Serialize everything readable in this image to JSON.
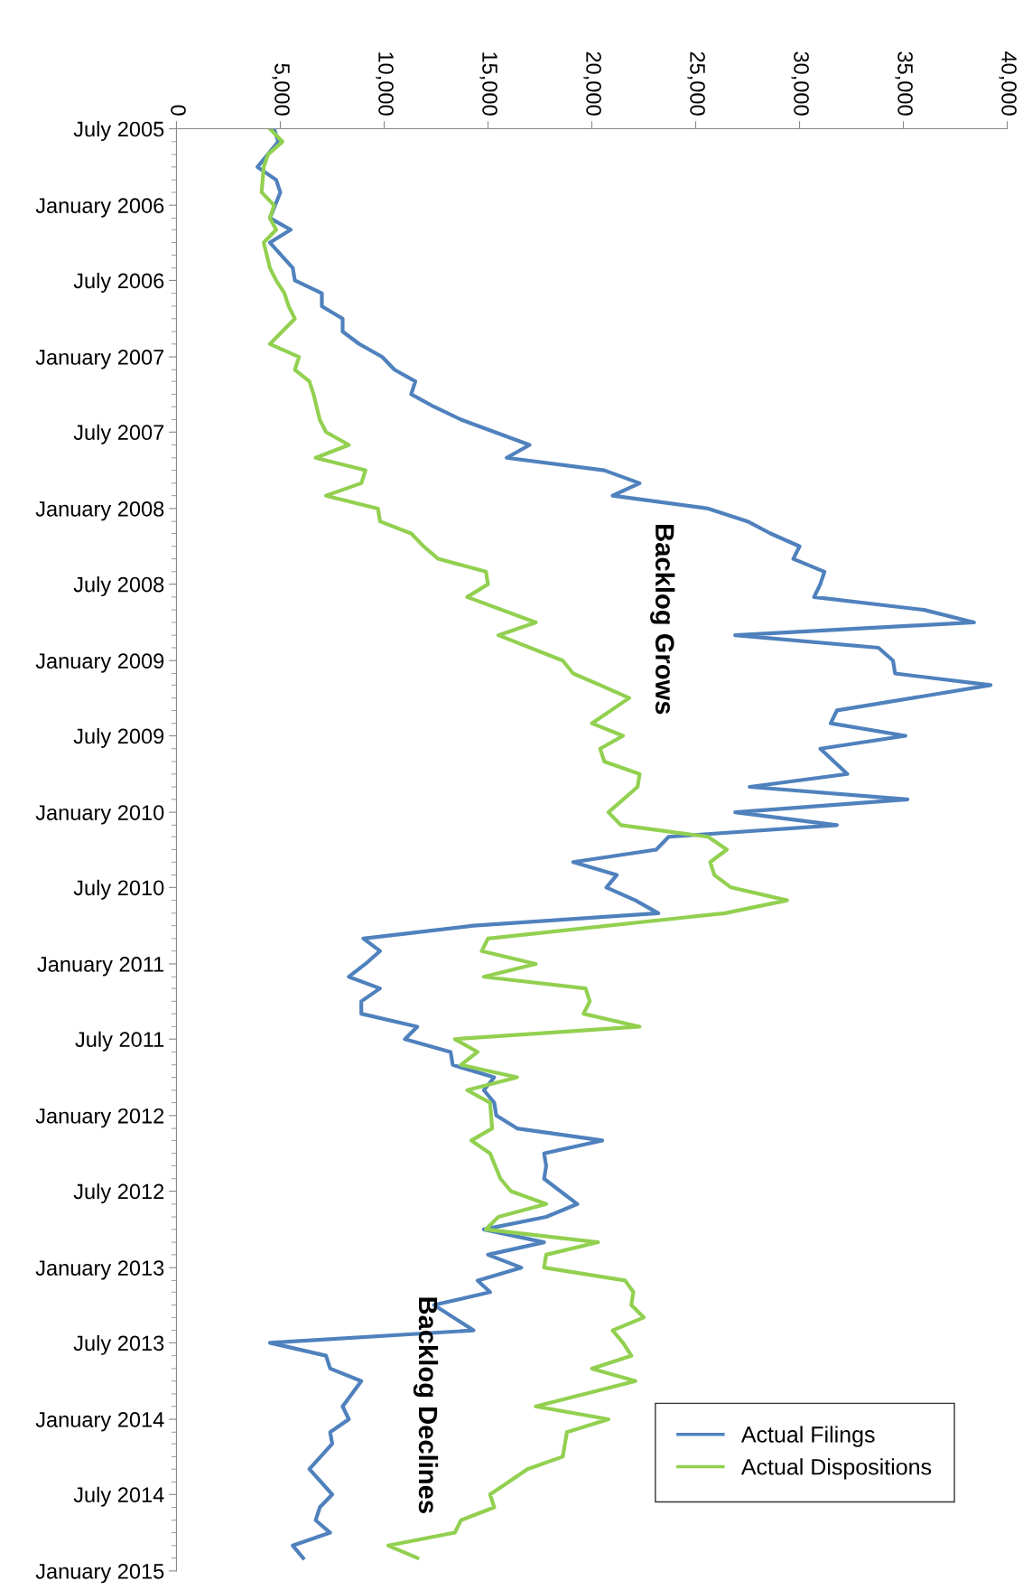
{
  "chart_data": {
    "type": "line",
    "orientation": "horizontal",
    "xlim": [
      0,
      40000
    ],
    "xticks": [
      0,
      {
        "value": 5000,
        "label": "5,000"
      },
      {
        "value": 10000,
        "label": "10,000"
      },
      {
        "value": 15000,
        "label": "15,000"
      },
      {
        "value": 20000,
        "label": "20,000"
      },
      {
        "value": 25000,
        "label": "25,000"
      },
      {
        "value": 30000,
        "label": "30,000"
      },
      {
        "value": 35000,
        "label": "35,000"
      },
      {
        "value": 40000,
        "label": "40,000"
      }
    ],
    "ylim": [
      "2015-01",
      "2005-07"
    ],
    "yticks": [
      {
        "value": "2005-07",
        "label": "July 2005"
      },
      {
        "value": "2006-01",
        "label": "January 2006"
      },
      {
        "value": "2006-07",
        "label": "July 2006"
      },
      {
        "value": "2007-01",
        "label": "January 2007"
      },
      {
        "value": "2007-07",
        "label": "July 2007"
      },
      {
        "value": "2008-01",
        "label": "January 2008"
      },
      {
        "value": "2008-07",
        "label": "July 2008"
      },
      {
        "value": "2009-01",
        "label": "January 2009"
      },
      {
        "value": "2009-07",
        "label": "July 2009"
      },
      {
        "value": "2010-01",
        "label": "January 2010"
      },
      {
        "value": "2010-07",
        "label": "July 2010"
      },
      {
        "value": "2011-01",
        "label": "January 2011"
      },
      {
        "value": "2011-07",
        "label": "July 2011"
      },
      {
        "value": "2012-01",
        "label": "January 2012"
      },
      {
        "value": "2012-07",
        "label": "July 2012"
      },
      {
        "value": "2013-01",
        "label": "January 2013"
      },
      {
        "value": "2013-07",
        "label": "July 2013"
      },
      {
        "value": "2014-01",
        "label": "January 2014"
      },
      {
        "value": "2014-07",
        "label": "July 2014"
      },
      {
        "value": "2015-01",
        "label": "January 2015"
      }
    ],
    "grid": false,
    "legend": "bottom right",
    "marker": "none",
    "line_style": "solid",
    "series": [
      {
        "name": "Actual Filings",
        "color": "#4f81bd",
        "x": [
          "2005-07",
          "2005-08",
          "2005-10",
          "2005-11",
          "2005-12",
          "2006-02",
          "2006-03",
          "2006-04",
          "2006-06",
          "2006-07",
          "2006-08",
          "2006-09",
          "2006-10",
          "2006-11",
          "2006-12",
          "2007-01",
          "2007-02",
          "2007-03",
          "2007-04",
          "2007-05",
          "2007-06",
          "2007-08",
          "2007-09",
          "2007-10",
          "2007-11",
          "2007-12",
          "2008-01",
          "2008-02",
          "2008-03",
          "2008-04",
          "2008-05",
          "2008-06",
          "2008-07",
          "2008-08",
          "2008-09",
          "2008-10",
          "2008-11",
          "2008-12",
          "2009-01",
          "2009-02",
          "2009-03",
          "2009-05",
          "2009-06",
          "2009-07",
          "2009-08",
          "2009-10",
          "2009-11",
          "2009-12",
          "2010-01",
          "2010-02",
          "2010-03",
          "2010-04",
          "2010-05",
          "2010-06",
          "2010-07",
          "2010-08",
          "2010-09",
          "2010-10",
          "2010-11",
          "2010-12",
          "2011-01",
          "2011-02",
          "2011-03",
          "2011-04",
          "2011-05",
          "2011-06",
          "2011-07",
          "2011-08",
          "2011-09",
          "2011-10",
          "2011-11",
          "2011-12",
          "2012-01",
          "2012-02",
          "2012-03",
          "2012-04",
          "2012-05",
          "2012-06",
          "2012-08",
          "2012-09",
          "2012-10",
          "2012-11",
          "2012-12",
          "2013-01",
          "2013-02",
          "2013-03",
          "2013-04",
          "2013-06",
          "2013-07",
          "2013-08",
          "2013-09",
          "2013-10",
          "2013-12",
          "2014-01",
          "2014-02",
          "2014-03",
          "2014-05",
          "2014-07",
          "2014-08",
          "2014-09",
          "2014-10",
          "2014-11",
          "2014-12"
        ],
        "values": [
          4700,
          4900,
          3900,
          4800,
          5000,
          4500,
          5500,
          4500,
          5600,
          5700,
          7000,
          7000,
          8000,
          8000,
          8800,
          9900,
          10500,
          11500,
          11300,
          12400,
          13700,
          17000,
          15900,
          20600,
          22300,
          21000,
          25600,
          27500,
          28600,
          30000,
          29700,
          31200,
          31000,
          30700,
          36000,
          38400,
          26900,
          33800,
          34500,
          34600,
          39200,
          31800,
          31500,
          35100,
          31000,
          32300,
          27600,
          35200,
          26900,
          31800,
          23700,
          23100,
          19100,
          21200,
          20700,
          22100,
          23200,
          14300,
          9000,
          9800,
          9100,
          8300,
          9800,
          8900,
          8900,
          11600,
          11000,
          13200,
          13300,
          15300,
          14800,
          15300,
          15400,
          16400,
          20500,
          17700,
          17800,
          17700,
          19300,
          17800,
          14800,
          17700,
          15000,
          16600,
          14500,
          15100,
          12400,
          14300,
          4500,
          7200,
          7400,
          8900,
          8000,
          8300,
          7400,
          7500,
          6400,
          7500,
          6900,
          6700,
          7400,
          5600,
          6100
        ]
      },
      {
        "name": "Actual Dispositions",
        "color": "#92d050",
        "x": [
          "2005-07",
          "2005-08",
          "2005-09",
          "2005-10",
          "2005-12",
          "2006-01",
          "2006-02",
          "2006-03",
          "2006-04",
          "2006-06",
          "2006-07",
          "2006-08",
          "2006-09",
          "2006-10",
          "2006-12",
          "2007-01",
          "2007-02",
          "2007-03",
          "2007-04",
          "2007-06",
          "2007-07",
          "2007-08",
          "2007-09",
          "2007-10",
          "2007-11",
          "2007-12",
          "2008-01",
          "2008-02",
          "2008-03",
          "2008-04",
          "2008-05",
          "2008-06",
          "2008-07",
          "2008-08",
          "2008-10",
          "2008-11",
          "2009-01",
          "2009-02",
          "2009-03",
          "2009-04",
          "2009-06",
          "2009-07",
          "2009-08",
          "2009-09",
          "2009-10",
          "2009-11",
          "2010-01",
          "2010-02",
          "2010-03",
          "2010-04",
          "2010-05",
          "2010-06",
          "2010-07",
          "2010-08",
          "2010-09",
          "2010-11",
          "2010-12",
          "2011-01",
          "2011-02",
          "2011-03",
          "2011-04",
          "2011-05",
          "2011-06",
          "2011-07",
          "2011-08",
          "2011-09",
          "2011-10",
          "2011-11",
          "2011-12",
          "2012-02",
          "2012-03",
          "2012-04",
          "2012-06",
          "2012-07",
          "2012-08",
          "2012-09",
          "2012-10",
          "2012-11",
          "2012-12",
          "2013-01",
          "2013-02",
          "2013-03",
          "2013-04",
          "2013-05",
          "2013-06",
          "2013-07",
          "2013-08",
          "2013-09",
          "2013-10",
          "2013-12",
          "2014-01",
          "2014-02",
          "2014-04",
          "2014-05",
          "2014-07",
          "2014-08",
          "2014-09",
          "2014-10",
          "2014-11",
          "2014-12"
        ],
        "values": [
          4500,
          5100,
          4400,
          4200,
          4100,
          4700,
          4500,
          4800,
          4200,
          4500,
          4800,
          5200,
          5400,
          5700,
          4500,
          5900,
          5700,
          6400,
          6600,
          6900,
          7200,
          8300,
          6700,
          9100,
          8900,
          7200,
          9700,
          9800,
          11300,
          11900,
          12600,
          14900,
          15000,
          14000,
          17300,
          15500,
          18600,
          19100,
          20400,
          21800,
          20000,
          21500,
          20400,
          20600,
          22300,
          22200,
          20800,
          21400,
          25600,
          26500,
          25700,
          25900,
          26700,
          29400,
          26400,
          15000,
          14700,
          17300,
          14800,
          19700,
          19900,
          19600,
          22300,
          13400,
          14500,
          13700,
          16400,
          14000,
          15100,
          15200,
          14200,
          15100,
          15600,
          16100,
          17800,
          15500,
          14900,
          20300,
          17800,
          17700,
          21600,
          22000,
          21900,
          22500,
          21000,
          21500,
          21900,
          20000,
          22100,
          17300,
          20800,
          18800,
          18600,
          16900,
          15100,
          15300,
          13700,
          13400,
          10200,
          11600
        ]
      }
    ],
    "annotations": [
      "Backlog Grows",
      "Backlog Declines"
    ]
  }
}
